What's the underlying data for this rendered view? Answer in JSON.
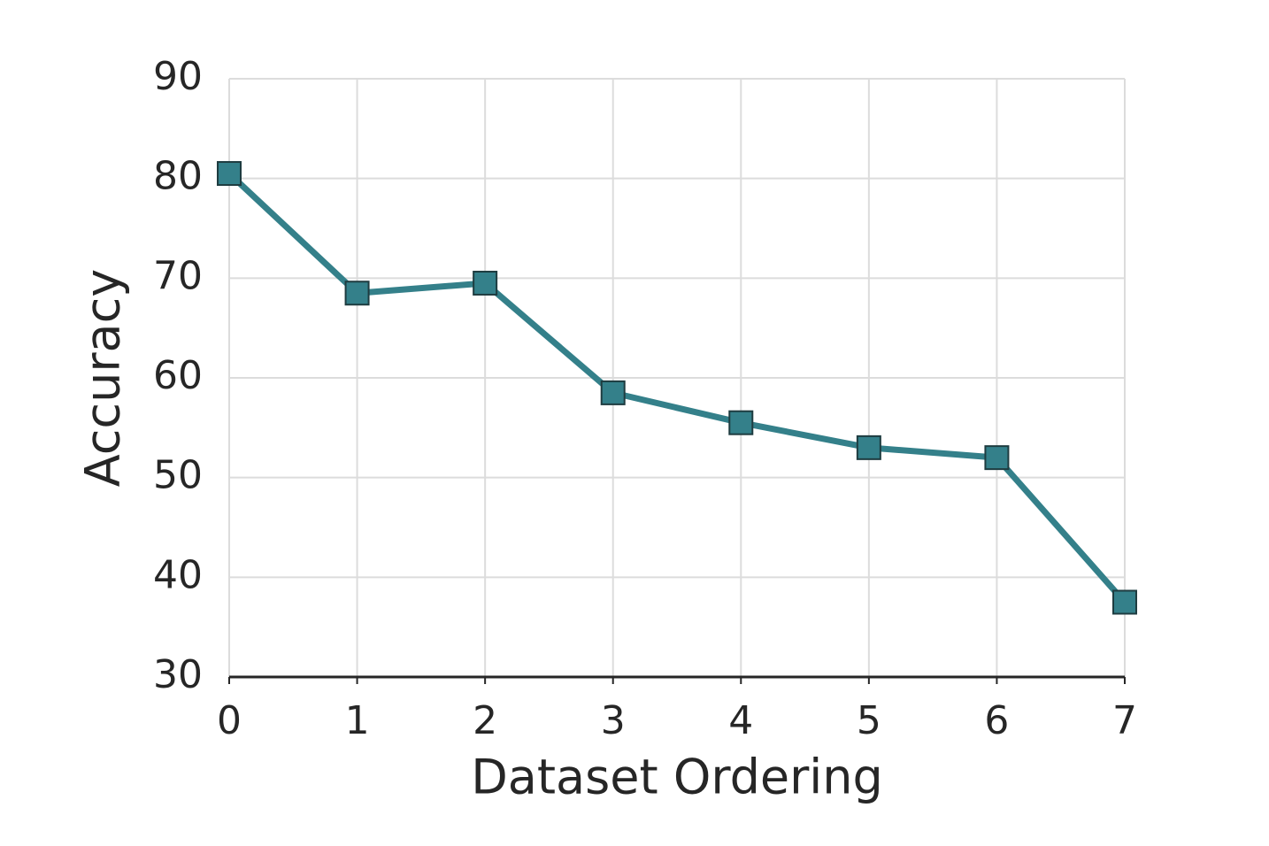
{
  "chart_data": {
    "type": "line",
    "x": [
      0,
      1,
      2,
      3,
      4,
      5,
      6,
      7
    ],
    "series": [
      {
        "color": "#34808a",
        "values": [
          80.5,
          68.5,
          69.5,
          58.5,
          55.5,
          53,
          52,
          37.5
        ]
      }
    ],
    "xlabel": "Dataset Ordering",
    "ylabel": "Accuracy",
    "xlim": [
      0,
      7
    ],
    "xticks": [
      0,
      1,
      2,
      3,
      4,
      5,
      6,
      7
    ],
    "ylim": [
      30,
      90
    ],
    "yticks": [
      30,
      40,
      50,
      60,
      70,
      80,
      90
    ],
    "grid": true
  }
}
